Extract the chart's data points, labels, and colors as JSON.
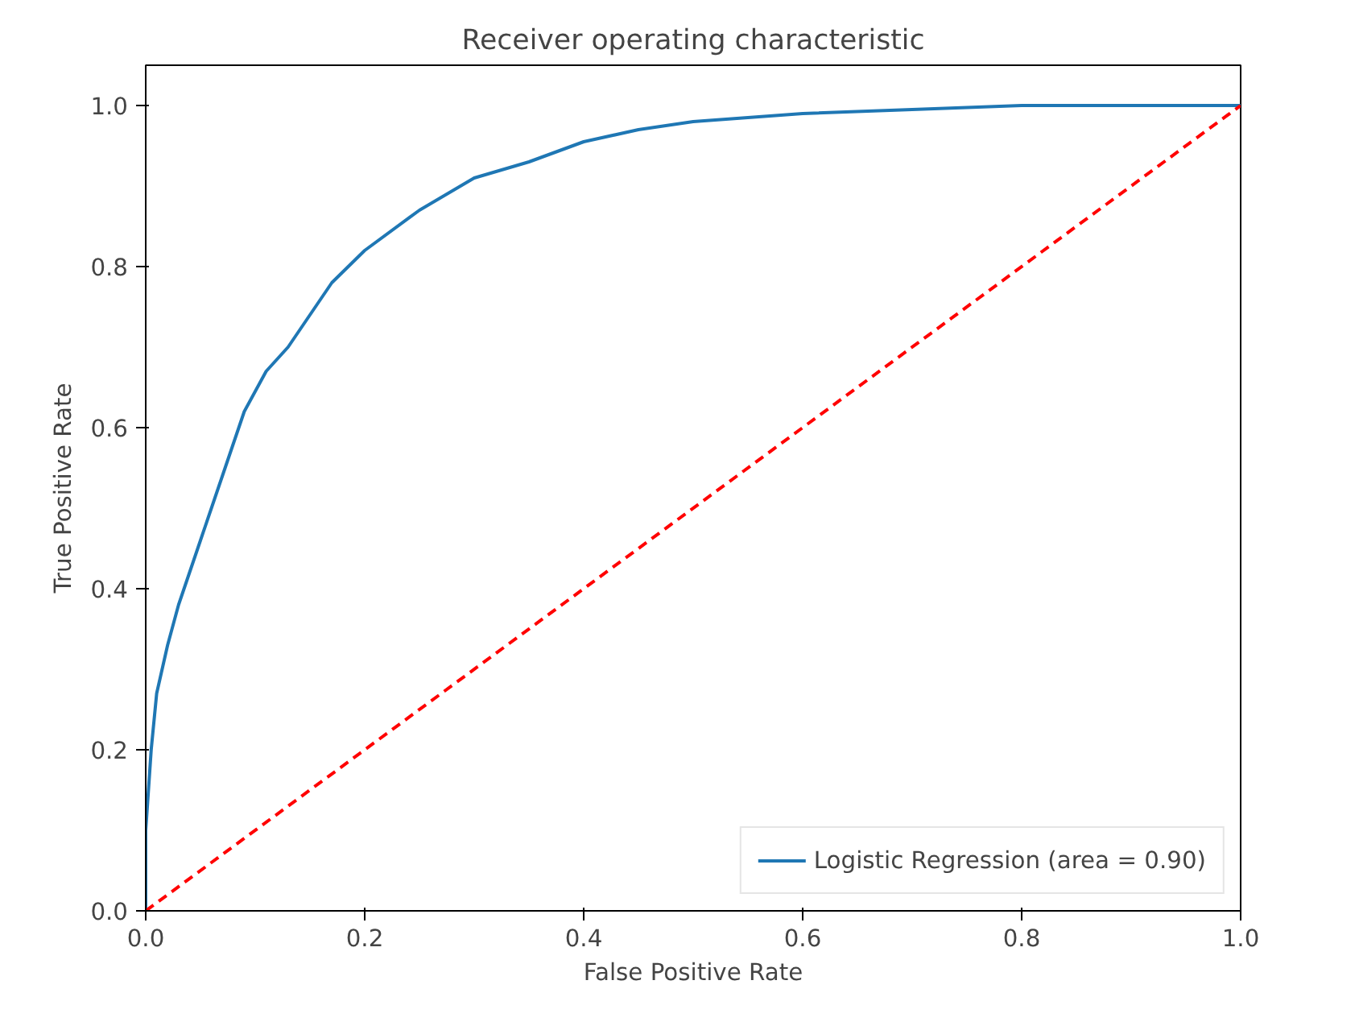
{
  "chart_data": {
    "type": "line",
    "title": "Receiver operating characteristic",
    "xlabel": "False Positive Rate",
    "ylabel": "True Positive Rate",
    "xlim": [
      0.0,
      1.0
    ],
    "ylim": [
      0.0,
      1.05
    ],
    "xticks": [
      {
        "value": 0,
        "label": "0.0"
      },
      {
        "value": 0.2,
        "label": "0.2"
      },
      {
        "value": 0.4,
        "label": "0.4"
      },
      {
        "value": 0.6,
        "label": "0.6"
      },
      {
        "value": 0.8,
        "label": "0.8"
      },
      {
        "value": 1,
        "label": "1.0"
      }
    ],
    "yticks": [
      {
        "value": 0,
        "label": "0.0"
      },
      {
        "value": 0.2,
        "label": "0.2"
      },
      {
        "value": 0.4,
        "label": "0.4"
      },
      {
        "value": 0.6,
        "label": "0.6"
      },
      {
        "value": 0.8,
        "label": "0.8"
      },
      {
        "value": 1,
        "label": "1.0"
      }
    ],
    "grid": false,
    "legend": "bottom right",
    "marker": "none",
    "series": [
      {
        "name": "Logistic Regression (area = 0.90)",
        "color": "#1f77b4",
        "line_style": "solid",
        "x": [
          0,
          0,
          0.005,
          0.01,
          0.02,
          0.03,
          0.05,
          0.07,
          0.09,
          0.11,
          0.13,
          0.15,
          0.17,
          0.2,
          0.25,
          0.3,
          0.35,
          0.4,
          0.45,
          0.5,
          0.6,
          0.7,
          0.8,
          1
        ],
        "values": [
          0,
          0.1,
          0.2,
          0.27,
          0.33,
          0.38,
          0.46,
          0.54,
          0.62,
          0.67,
          0.7,
          0.74,
          0.78,
          0.82,
          0.87,
          0.91,
          0.93,
          0.955,
          0.97,
          0.98,
          0.99,
          0.995,
          1,
          1
        ]
      },
      {
        "color": "#ff0000",
        "line_style": "dashed",
        "x": [
          0,
          1
        ],
        "values": [
          0,
          1
        ]
      }
    ]
  }
}
